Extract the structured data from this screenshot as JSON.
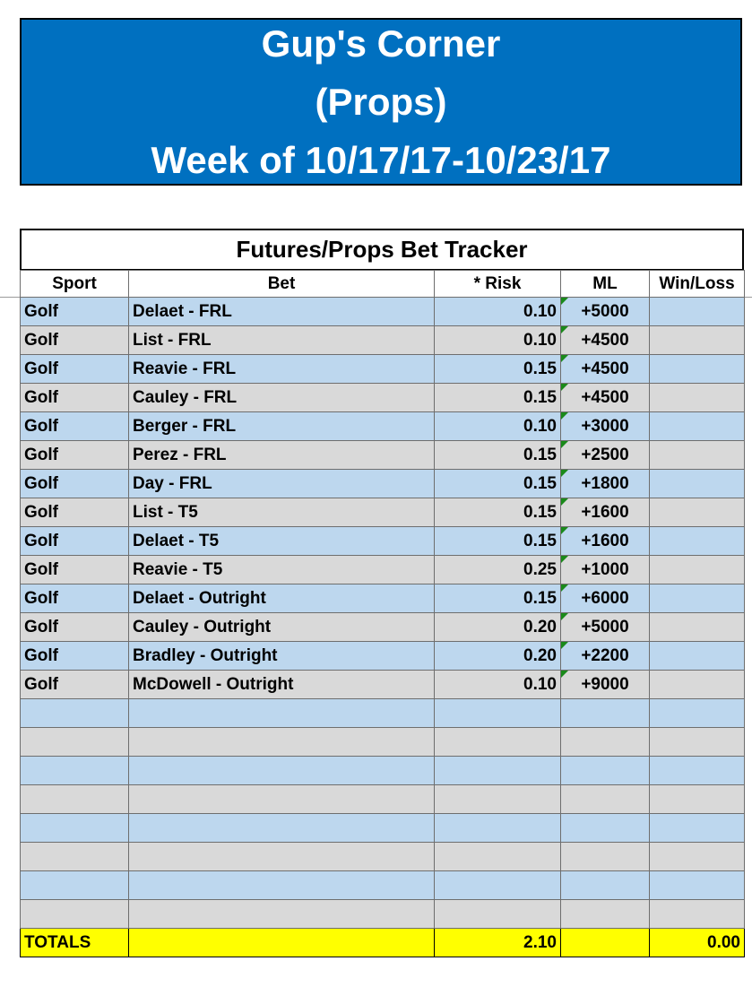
{
  "banner": {
    "line1": "Gup's Corner",
    "line2": "(Props)",
    "line3": "Week of 10/17/17-10/23/17",
    "bg_color": "#0070c0"
  },
  "tracker": {
    "title": "Futures/Props Bet Tracker",
    "columns": [
      "Sport",
      "Bet",
      "* Risk",
      "ML",
      "Win/Loss"
    ],
    "rows": [
      {
        "sport": "Golf",
        "bet": "Delaet - FRL",
        "risk": "0.10",
        "ml": "+5000",
        "winloss": ""
      },
      {
        "sport": "Golf",
        "bet": "List - FRL",
        "risk": "0.10",
        "ml": "+4500",
        "winloss": ""
      },
      {
        "sport": "Golf",
        "bet": "Reavie - FRL",
        "risk": "0.15",
        "ml": "+4500",
        "winloss": ""
      },
      {
        "sport": "Golf",
        "bet": "Cauley - FRL",
        "risk": "0.15",
        "ml": "+4500",
        "winloss": ""
      },
      {
        "sport": "Golf",
        "bet": "Berger - FRL",
        "risk": "0.10",
        "ml": "+3000",
        "winloss": ""
      },
      {
        "sport": "Golf",
        "bet": "Perez - FRL",
        "risk": "0.15",
        "ml": "+2500",
        "winloss": ""
      },
      {
        "sport": "Golf",
        "bet": "Day - FRL",
        "risk": "0.15",
        "ml": "+1800",
        "winloss": ""
      },
      {
        "sport": "Golf",
        "bet": "List - T5",
        "risk": "0.15",
        "ml": "+1600",
        "winloss": ""
      },
      {
        "sport": "Golf",
        "bet": "Delaet - T5",
        "risk": "0.15",
        "ml": "+1600",
        "winloss": ""
      },
      {
        "sport": "Golf",
        "bet": "Reavie - T5",
        "risk": "0.25",
        "ml": "+1000",
        "winloss": ""
      },
      {
        "sport": "Golf",
        "bet": "Delaet - Outright",
        "risk": "0.15",
        "ml": "+6000",
        "winloss": ""
      },
      {
        "sport": "Golf",
        "bet": "Cauley - Outright",
        "risk": "0.20",
        "ml": "+5000",
        "winloss": ""
      },
      {
        "sport": "Golf",
        "bet": "Bradley - Outright",
        "risk": "0.20",
        "ml": "+2200",
        "winloss": ""
      },
      {
        "sport": "Golf",
        "bet": "McDowell - Outright",
        "risk": "0.10",
        "ml": "+9000",
        "winloss": ""
      }
    ],
    "empty_rows": 8,
    "totals": {
      "label": "TOTALS",
      "risk": "2.10",
      "winloss": "0.00"
    },
    "colors": {
      "row_blue": "#bdd7ee",
      "row_gray": "#d9d9d9",
      "totals": "#ffff00",
      "comment_flag": "#1a8a1a"
    }
  }
}
